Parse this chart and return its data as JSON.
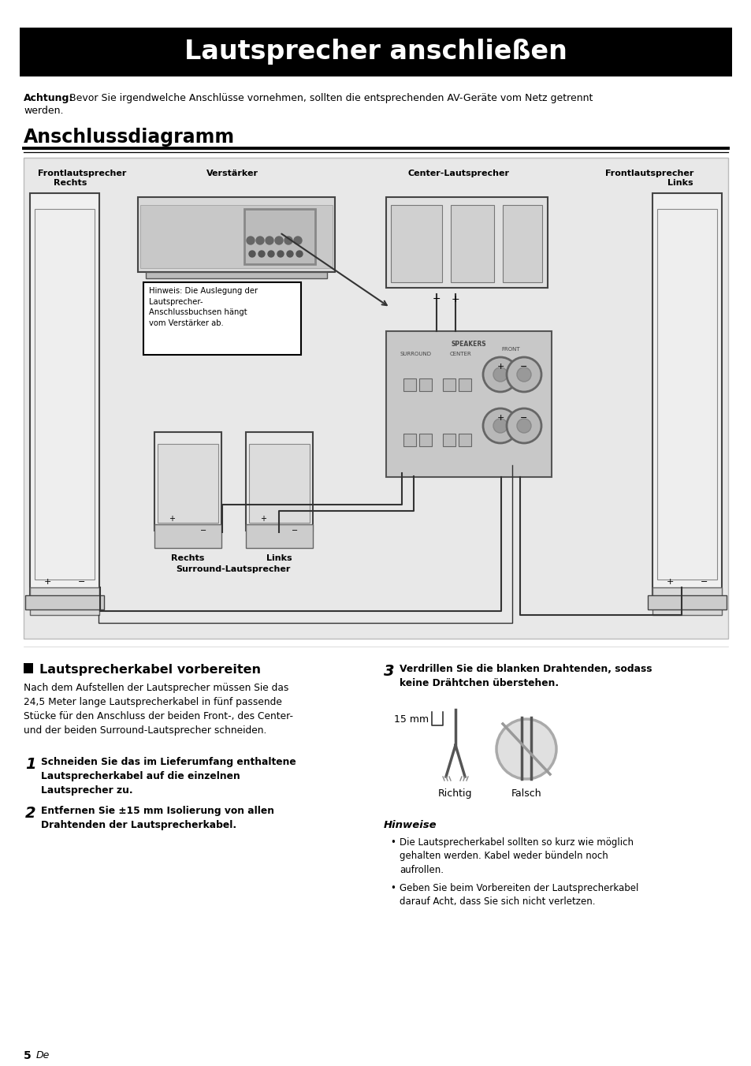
{
  "page_bg": "#ffffff",
  "title_text": "Lautsprecher anschließen",
  "title_bg": "#000000",
  "title_color": "#ffffff",
  "title_fontsize": 26,
  "warning_bold": "Achtung:",
  "warning_text": "Bevor Sie irgendwelche Anschlüsse vornehmen, sollten die entsprechenden AV-Geräte vom Netz getrennt werden.",
  "section_title": "Anschlussdiagramm",
  "diagram_bg": "#e8e8e8",
  "hinweis_box": "Hinweis: Die Auslegung der\nLautsprecher-\nAnschlussbuchsen hängt\nvom Verstärker ab.",
  "section2_title": "Lautsprecherkabel vorbereiten",
  "section2_intro": "Nach dem Aufstellen der Lautsprecher müssen Sie das\n24,5 Meter lange Lautsprecherkabel in fünf passende\nStücke für den Anschluss der beiden Front-, des Center-\nund der beiden Surround-Lautsprecher schneiden.",
  "step1_num": "1",
  "step1_text": "Schneiden Sie das im Lieferumfang enthaltene\nLautsprecherkabel auf die einzelnen\nLautsprecher zu.",
  "step2_num": "2",
  "step2_text": "Entfernen Sie ±15 mm Isolierung von allen\nDrahtenden der Lautsprecherkabel.",
  "step3_num": "3",
  "step3_text": "Verdrillen Sie die blanken Drahtenden, sodass\nkeine Drähtchen überstehen.",
  "richtig_label": "Richtig",
  "falsch_label": "Falsch",
  "mm_label": "15 mm",
  "hinweise_title": "Hinweise",
  "hinweise_bullets": [
    "Die Lautsprecherkabel sollten so kurz wie möglich\ngehalten werden. Kabel weder bündeln noch\naufrollen.",
    "Geben Sie beim Vorbereiten der Lautsprecherkabel\ndarauf Acht, dass Sie sich nicht verletzen."
  ],
  "page_num": "5",
  "page_lang": "De"
}
